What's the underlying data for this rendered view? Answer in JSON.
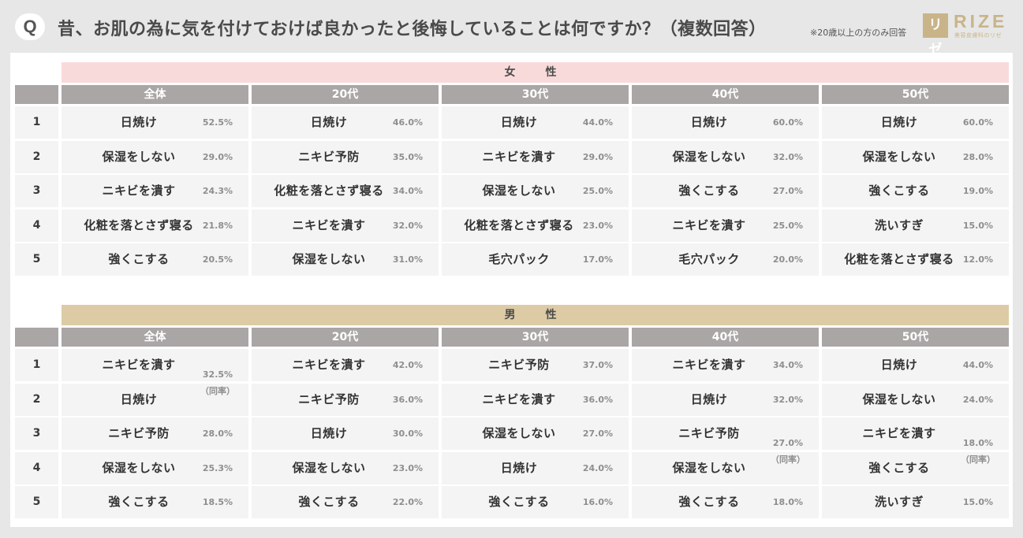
{
  "header": {
    "q_badge": "Q",
    "question": "昔、お肌の為に気を付けておけば良かったと後悔していることは何ですか？（複数回答）",
    "note": "※20歳以上の方のみ回答",
    "logo_mark": "リゼ",
    "logo_text": "RIZE",
    "logo_sub": "美容皮膚科のリゼ"
  },
  "colors": {
    "female_band": "#f9dada",
    "male_band": "#dccba5",
    "column_header": "#aaa6a5",
    "logo": "#c9b48a"
  },
  "columns": [
    "全体",
    "20代",
    "30代",
    "40代",
    "50代"
  ],
  "ranks": [
    "1",
    "2",
    "3",
    "4",
    "5"
  ],
  "female": {
    "label": "女　性",
    "rows": [
      [
        {
          "item": "日焼け",
          "pct": "52.5%"
        },
        {
          "item": "日焼け",
          "pct": "46.0%"
        },
        {
          "item": "日焼け",
          "pct": "44.0%"
        },
        {
          "item": "日焼け",
          "pct": "60.0%"
        },
        {
          "item": "日焼け",
          "pct": "60.0%"
        }
      ],
      [
        {
          "item": "保湿をしない",
          "pct": "29.0%"
        },
        {
          "item": "ニキビ予防",
          "pct": "35.0%"
        },
        {
          "item": "ニキビを潰す",
          "pct": "29.0%"
        },
        {
          "item": "保湿をしない",
          "pct": "32.0%"
        },
        {
          "item": "保湿をしない",
          "pct": "28.0%"
        }
      ],
      [
        {
          "item": "ニキビを潰す",
          "pct": "24.3%"
        },
        {
          "item": "化粧を落とさず寝る",
          "pct": "34.0%"
        },
        {
          "item": "保湿をしない",
          "pct": "25.0%"
        },
        {
          "item": "強くこする",
          "pct": "27.0%"
        },
        {
          "item": "強くこする",
          "pct": "19.0%"
        }
      ],
      [
        {
          "item": "化粧を落とさず寝る",
          "pct": "21.8%"
        },
        {
          "item": "ニキビを潰す",
          "pct": "32.0%"
        },
        {
          "item": "化粧を落とさず寝る",
          "pct": "23.0%"
        },
        {
          "item": "ニキビを潰す",
          "pct": "25.0%"
        },
        {
          "item": "洗いすぎ",
          "pct": "15.0%"
        }
      ],
      [
        {
          "item": "強くこする",
          "pct": "20.5%"
        },
        {
          "item": "保湿をしない",
          "pct": "31.0%"
        },
        {
          "item": "毛穴パック",
          "pct": "17.0%"
        },
        {
          "item": "毛穴パック",
          "pct": "20.0%"
        },
        {
          "item": "化粧を落とさず寝る",
          "pct": "12.0%"
        }
      ]
    ]
  },
  "male": {
    "label": "男　性",
    "rows": [
      [
        {
          "item": "ニキビを潰す",
          "pct": ""
        },
        {
          "item": "ニキビを潰す",
          "pct": "42.0%"
        },
        {
          "item": "ニキビ予防",
          "pct": "37.0%"
        },
        {
          "item": "ニキビを潰す",
          "pct": "34.0%"
        },
        {
          "item": "日焼け",
          "pct": "44.0%"
        }
      ],
      [
        {
          "item": "日焼け",
          "pct": ""
        },
        {
          "item": "ニキビ予防",
          "pct": "36.0%"
        },
        {
          "item": "ニキビを潰す",
          "pct": "36.0%"
        },
        {
          "item": "日焼け",
          "pct": "32.0%"
        },
        {
          "item": "保湿をしない",
          "pct": "24.0%"
        }
      ],
      [
        {
          "item": "ニキビ予防",
          "pct": "28.0%"
        },
        {
          "item": "日焼け",
          "pct": "30.0%"
        },
        {
          "item": "保湿をしない",
          "pct": "27.0%"
        },
        {
          "item": "ニキビ予防",
          "pct": ""
        },
        {
          "item": "ニキビを潰す",
          "pct": ""
        }
      ],
      [
        {
          "item": "保湿をしない",
          "pct": "25.3%"
        },
        {
          "item": "保湿をしない",
          "pct": "23.0%"
        },
        {
          "item": "日焼け",
          "pct": "24.0%"
        },
        {
          "item": "保湿をしない",
          "pct": ""
        },
        {
          "item": "強くこする",
          "pct": ""
        }
      ],
      [
        {
          "item": "強くこする",
          "pct": "18.5%"
        },
        {
          "item": "強くこする",
          "pct": "22.0%"
        },
        {
          "item": "強くこする",
          "pct": "16.0%"
        },
        {
          "item": "強くこする",
          "pct": "18.0%"
        },
        {
          "item": "洗いすぎ",
          "pct": "15.0%"
        }
      ]
    ],
    "ties": [
      {
        "col": 0,
        "row": 0,
        "pct": "32.5%",
        "note": "（同率）"
      },
      {
        "col": 3,
        "row": 2,
        "pct": "27.0%",
        "note": "（同率）"
      },
      {
        "col": 4,
        "row": 2,
        "pct": "18.0%",
        "note": "（同率）"
      }
    ]
  }
}
